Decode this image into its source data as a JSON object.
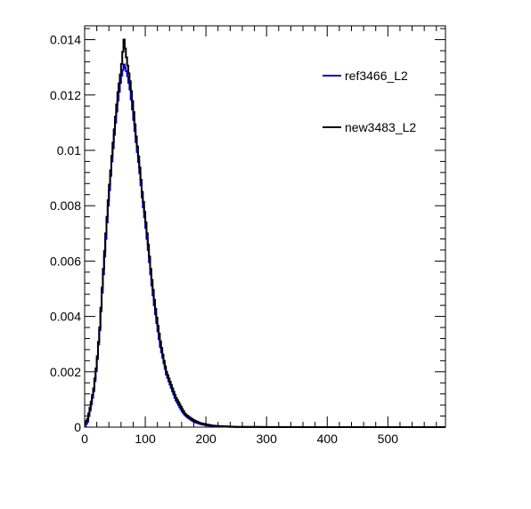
{
  "chart_data": {
    "type": "line",
    "title": "",
    "xlabel": "",
    "ylabel": "",
    "xlim": [
      0,
      595
    ],
    "ylim": [
      0,
      0.0145
    ],
    "x_ticks": [
      {
        "value": 0,
        "label": "0"
      },
      {
        "value": 100,
        "label": "100"
      },
      {
        "value": 200,
        "label": "200"
      },
      {
        "value": 300,
        "label": "300"
      },
      {
        "value": 400,
        "label": "400"
      },
      {
        "value": 500,
        "label": "500"
      }
    ],
    "y_ticks": [
      {
        "value": 0,
        "label": "0"
      },
      {
        "value": 0.002,
        "label": "0.002"
      },
      {
        "value": 0.004,
        "label": "0.004"
      },
      {
        "value": 0.006,
        "label": "0.006"
      },
      {
        "value": 0.008,
        "label": "0.008"
      },
      {
        "value": 0.01,
        "label": "0.01"
      },
      {
        "value": 0.012,
        "label": "0.012"
      },
      {
        "value": 0.014,
        "label": "0.014"
      }
    ],
    "legend_position": "top-right",
    "grid": false,
    "series": [
      {
        "name": "ref3466_L2",
        "color": "#0000cc",
        "points": [
          [
            0,
            0
          ],
          [
            5,
            0.0002
          ],
          [
            10,
            0.0007
          ],
          [
            15,
            0.0013
          ],
          [
            20,
            0.0022
          ],
          [
            25,
            0.0035
          ],
          [
            30,
            0.0052
          ],
          [
            35,
            0.0068
          ],
          [
            40,
            0.0083
          ],
          [
            45,
            0.0096
          ],
          [
            50,
            0.0108
          ],
          [
            55,
            0.0118
          ],
          [
            60,
            0.0126
          ],
          [
            65,
            0.0131
          ],
          [
            70,
            0.0128
          ],
          [
            75,
            0.0122
          ],
          [
            80,
            0.0113
          ],
          [
            85,
            0.0103
          ],
          [
            90,
            0.0094
          ],
          [
            95,
            0.0083
          ],
          [
            100,
            0.0074
          ],
          [
            105,
            0.0064
          ],
          [
            110,
            0.0053
          ],
          [
            115,
            0.0044
          ],
          [
            120,
            0.0036
          ],
          [
            125,
            0.0029
          ],
          [
            130,
            0.0024
          ],
          [
            135,
            0.0019
          ],
          [
            140,
            0.0016
          ],
          [
            145,
            0.0013
          ],
          [
            150,
            0.001
          ],
          [
            155,
            0.0008
          ],
          [
            160,
            0.0006
          ],
          [
            165,
            0.00045
          ],
          [
            170,
            0.00035
          ],
          [
            180,
            0.0002
          ],
          [
            190,
            0.00012
          ],
          [
            200,
            7e-05
          ],
          [
            210,
            4e-05
          ],
          [
            220,
            3e-05
          ],
          [
            230,
            2e-05
          ],
          [
            240,
            1e-05
          ],
          [
            250,
            5e-06
          ],
          [
            300,
            2e-06
          ],
          [
            400,
            0
          ],
          [
            595,
            0
          ]
        ]
      },
      {
        "name": "new3483_L2",
        "color": "#000000",
        "points": [
          [
            0,
            0.0001
          ],
          [
            5,
            0.0003
          ],
          [
            10,
            0.0008
          ],
          [
            15,
            0.0014
          ],
          [
            20,
            0.0023
          ],
          [
            25,
            0.0036
          ],
          [
            30,
            0.0054
          ],
          [
            35,
            0.007
          ],
          [
            40,
            0.0085
          ],
          [
            45,
            0.0098
          ],
          [
            50,
            0.011
          ],
          [
            55,
            0.0121
          ],
          [
            60,
            0.0129
          ],
          [
            65,
            0.014
          ],
          [
            70,
            0.0132
          ],
          [
            75,
            0.0125
          ],
          [
            80,
            0.0116
          ],
          [
            85,
            0.0105
          ],
          [
            90,
            0.0096
          ],
          [
            95,
            0.0085
          ],
          [
            100,
            0.0076
          ],
          [
            105,
            0.0066
          ],
          [
            110,
            0.0055
          ],
          [
            115,
            0.0046
          ],
          [
            120,
            0.0038
          ],
          [
            125,
            0.0031
          ],
          [
            130,
            0.0025
          ],
          [
            135,
            0.002
          ],
          [
            140,
            0.0017
          ],
          [
            145,
            0.0014
          ],
          [
            150,
            0.0011
          ],
          [
            155,
            0.0009
          ],
          [
            160,
            0.0007
          ],
          [
            165,
            0.0005
          ],
          [
            170,
            0.0004
          ],
          [
            180,
            0.00025
          ],
          [
            190,
            0.00015
          ],
          [
            200,
            0.0001
          ],
          [
            210,
            6e-05
          ],
          [
            220,
            4e-05
          ],
          [
            230,
            3e-05
          ],
          [
            240,
            2e-05
          ],
          [
            250,
            1e-05
          ],
          [
            300,
            5e-06
          ],
          [
            400,
            0
          ],
          [
            595,
            0
          ]
        ]
      }
    ]
  }
}
